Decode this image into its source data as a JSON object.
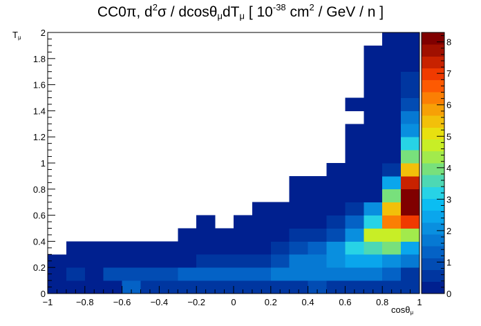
{
  "title": {
    "pre": "CC0π, d",
    "sup1": "2",
    "mid1": "σ / dcosθ",
    "sub1": "μ",
    "mid2": "dT",
    "sub2": "μ",
    "mid3": " [ 10",
    "sup2": "-38",
    "mid4": " cm",
    "sup3": "2",
    "end": " / GeV / n ]"
  },
  "axes": {
    "x_main": "cosθ",
    "x_sub": "μ",
    "y_main": "T",
    "y_sub": "μ"
  },
  "chart_data": {
    "type": "heatmap",
    "title": "CC0π, d²σ / dcosθ_μ dT_μ [ 10^-38 cm² / GeV / n ]",
    "xlabel": "cosθ_μ",
    "ylabel": "T_μ",
    "xlim": [
      -1,
      1
    ],
    "ylim": [
      0,
      2
    ],
    "zlim": [
      0,
      8.3
    ],
    "x_edges": [
      -1,
      -0.9,
      -0.8,
      -0.7,
      -0.6,
      -0.5,
      -0.4,
      -0.3,
      -0.2,
      -0.1,
      0,
      0.1,
      0.2,
      0.3,
      0.4,
      0.5,
      0.6,
      0.7,
      0.8,
      0.9,
      1
    ],
    "y_edges": [
      0,
      0.1,
      0.2,
      0.3,
      0.4,
      0.5,
      0.6,
      0.7,
      0.8,
      0.9,
      1.0,
      1.1,
      1.2,
      1.3,
      1.4,
      1.5,
      1.6,
      1.7,
      1.8,
      1.9,
      2.0
    ],
    "x_ticks": [
      "−1",
      "−0.8",
      "−0.6",
      "−0.4",
      "−0.2",
      "0",
      "0.2",
      "0.4",
      "0.6",
      "0.8",
      "1"
    ],
    "x_tick_values": [
      -1,
      -0.8,
      -0.6,
      -0.4,
      -0.2,
      0,
      0.2,
      0.4,
      0.6,
      0.8,
      1
    ],
    "y_ticks": [
      "0",
      "0.2",
      "0.4",
      "0.6",
      "0.8",
      "1",
      "1.2",
      "1.4",
      "1.6",
      "1.8",
      "2"
    ],
    "y_tick_values": [
      0,
      0.2,
      0.4,
      0.6,
      0.8,
      1.0,
      1.2,
      1.4,
      1.6,
      1.8,
      2.0
    ],
    "z_ticks": [
      "0",
      "1",
      "2",
      "3",
      "4",
      "5",
      "6",
      "7",
      "8"
    ],
    "z_tick_values": [
      0,
      1,
      2,
      3,
      4,
      5,
      6,
      7,
      8
    ],
    "colorscale": [
      "#00208f",
      "#0036a0",
      "#024cb3",
      "#0462c6",
      "#0679d3",
      "#098fdf",
      "#0aa6ec",
      "#0bbdf2",
      "#27d3e6",
      "#4dd8b4",
      "#78e07c",
      "#a2ea4c",
      "#c8ee26",
      "#e8e010",
      "#f2c00a",
      "#f7a006",
      "#fb7f04",
      "#fd5a02",
      "#f03a00",
      "#c82200",
      "#a01000",
      "#800000"
    ],
    "values_rows_bottom_to_top": [
      [
        0.3,
        0.3,
        0.3,
        0.3,
        1.3,
        0.6,
        0.6,
        0.6,
        0.6,
        0.6,
        0.6,
        0.6,
        0.6,
        0.6,
        0.9,
        0.6,
        0.6,
        0.6,
        0.6,
        0.6
      ],
      [
        0.3,
        0.6,
        0.3,
        0.9,
        0.9,
        0.9,
        0.9,
        1.2,
        1.2,
        1.2,
        1.2,
        1.2,
        1.6,
        1.6,
        1.6,
        1.6,
        1.6,
        1.6,
        1.2,
        0.6
      ],
      [
        0.3,
        0.3,
        0.3,
        0.3,
        0.3,
        0.3,
        0.3,
        0.3,
        0.6,
        0.6,
        0.6,
        0.6,
        0.9,
        1.6,
        1.6,
        2.2,
        2.5,
        2.5,
        2.2,
        1.6
      ],
      [
        null,
        0.3,
        0.3,
        0.3,
        0.3,
        0.3,
        0.3,
        0.3,
        0.3,
        0.3,
        0.3,
        0.3,
        0.6,
        0.9,
        1.4,
        2.2,
        3.1,
        3.6,
        4.0,
        2.5
      ],
      [
        null,
        null,
        null,
        null,
        null,
        null,
        null,
        0.3,
        0.3,
        0.3,
        0.3,
        0.3,
        0.3,
        0.6,
        0.6,
        0.9,
        2.2,
        4.6,
        4.9,
        4.4
      ],
      [
        null,
        null,
        null,
        null,
        null,
        null,
        null,
        null,
        0.3,
        null,
        0.3,
        0.3,
        0.3,
        0.3,
        0.3,
        0.6,
        1.3,
        3.2,
        6.1,
        6.9
      ],
      [
        null,
        null,
        null,
        null,
        null,
        null,
        null,
        null,
        null,
        null,
        null,
        0.3,
        0.3,
        0.3,
        0.3,
        0.3,
        0.6,
        1.9,
        5.6,
        8.0
      ],
      [
        null,
        null,
        null,
        null,
        null,
        null,
        null,
        null,
        null,
        null,
        null,
        null,
        null,
        0.3,
        0.3,
        0.3,
        0.3,
        0.3,
        3.8,
        8.0
      ],
      [
        null,
        null,
        null,
        null,
        null,
        null,
        null,
        null,
        null,
        null,
        null,
        null,
        null,
        0.3,
        0.3,
        0.3,
        0.3,
        0.3,
        2.6,
        7.4
      ],
      [
        null,
        null,
        null,
        null,
        null,
        null,
        null,
        null,
        null,
        null,
        null,
        null,
        null,
        null,
        null,
        0.3,
        0.3,
        0.3,
        0.6,
        5.3
      ],
      [
        null,
        null,
        null,
        null,
        null,
        null,
        null,
        null,
        null,
        null,
        null,
        null,
        null,
        null,
        null,
        null,
        0.3,
        0.3,
        0.3,
        4.0
      ],
      [
        null,
        null,
        null,
        null,
        null,
        null,
        null,
        null,
        null,
        null,
        null,
        null,
        null,
        null,
        null,
        null,
        0.3,
        0.3,
        0.3,
        3.2
      ],
      [
        null,
        null,
        null,
        null,
        null,
        null,
        null,
        null,
        null,
        null,
        null,
        null,
        null,
        null,
        null,
        null,
        0.3,
        0.3,
        0.3,
        2.2
      ],
      [
        null,
        null,
        null,
        null,
        null,
        null,
        null,
        null,
        null,
        null,
        null,
        null,
        null,
        null,
        null,
        null,
        null,
        0.3,
        0.3,
        1.6
      ],
      [
        null,
        null,
        null,
        null,
        null,
        null,
        null,
        null,
        null,
        null,
        null,
        null,
        null,
        null,
        null,
        null,
        0.3,
        0.3,
        0.3,
        0.9
      ],
      [
        null,
        null,
        null,
        null,
        null,
        null,
        null,
        null,
        null,
        null,
        null,
        null,
        null,
        null,
        null,
        null,
        null,
        0.3,
        0.3,
        0.6
      ],
      [
        null,
        null,
        null,
        null,
        null,
        null,
        null,
        null,
        null,
        null,
        null,
        null,
        null,
        null,
        null,
        null,
        null,
        0.3,
        0.3,
        0.6
      ],
      [
        null,
        null,
        null,
        null,
        null,
        null,
        null,
        null,
        null,
        null,
        null,
        null,
        null,
        null,
        null,
        null,
        null,
        0.3,
        0.3,
        0.3
      ],
      [
        null,
        null,
        null,
        null,
        null,
        null,
        null,
        null,
        null,
        null,
        null,
        null,
        null,
        null,
        null,
        null,
        null,
        0.3,
        0.3,
        0.3
      ],
      [
        null,
        null,
        null,
        null,
        null,
        null,
        null,
        null,
        null,
        null,
        null,
        null,
        null,
        null,
        null,
        null,
        null,
        null,
        0.3,
        0.3
      ]
    ]
  }
}
